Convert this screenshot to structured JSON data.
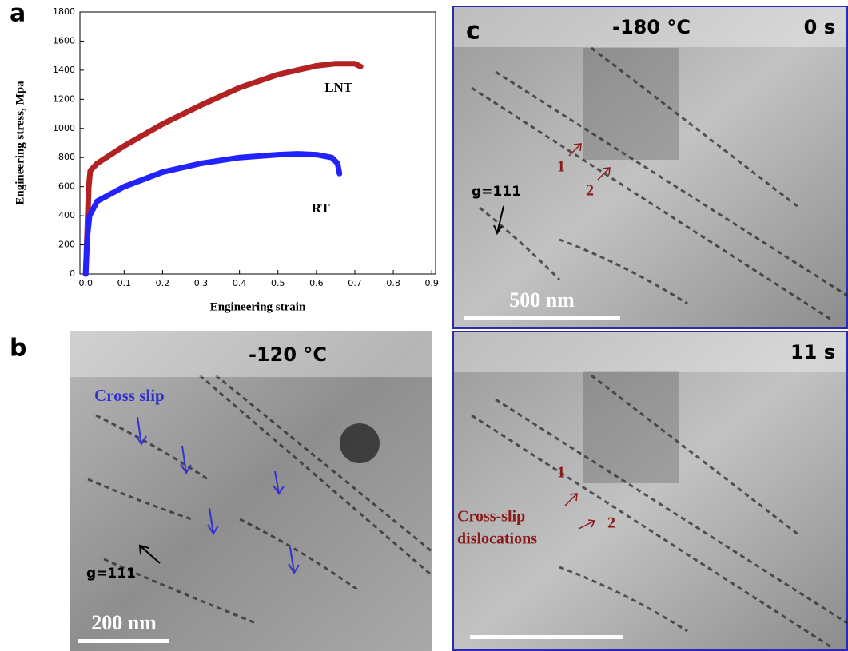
{
  "chart_data": {
    "type": "line",
    "xlabel": "Engineering strain",
    "ylabel": "Engineering stress, Mpa",
    "xlim": [
      -0.015,
      0.91
    ],
    "ylim": [
      0,
      1800
    ],
    "xticks": [
      {
        "value": 0,
        "label": "0.0"
      },
      0.1,
      0.2,
      0.3,
      0.4,
      0.5,
      0.6,
      0.7,
      0.8,
      0.9
    ],
    "yticks": [
      0,
      200,
      400,
      600,
      800,
      1000,
      1200,
      1400,
      1600,
      1800
    ],
    "series": [
      {
        "name": "LNT",
        "color": "#b22222",
        "x": [
          0.0,
          0.004,
          0.008,
          0.012,
          0.03,
          0.1,
          0.2,
          0.3,
          0.4,
          0.5,
          0.6,
          0.65,
          0.7,
          0.715
        ],
        "values": [
          0,
          300,
          600,
          710,
          760,
          880,
          1030,
          1160,
          1280,
          1370,
          1430,
          1445,
          1445,
          1425
        ]
      },
      {
        "name": "RT",
        "color": "#2222ff",
        "x": [
          0.0,
          0.004,
          0.01,
          0.03,
          0.1,
          0.2,
          0.3,
          0.4,
          0.5,
          0.55,
          0.6,
          0.64,
          0.655,
          0.66
        ],
        "values": [
          0,
          250,
          400,
          500,
          600,
          700,
          760,
          800,
          820,
          825,
          820,
          800,
          760,
          690
        ]
      }
    ]
  },
  "panels": {
    "a": "a",
    "b": "b",
    "c": "c"
  },
  "panel_b": {
    "temperature": "-120 °C",
    "annotation": "Cross slip",
    "g_vector": "g=111",
    "scale_bar": "200 nm"
  },
  "panel_c_top": {
    "temperature": "-180 °C",
    "time": "0 s",
    "marker_1": "1",
    "marker_2": "2",
    "g_vector": "g=111",
    "scale_bar": "500 nm"
  },
  "panel_c_bottom": {
    "time": "11 s",
    "marker_1": "1",
    "marker_2": "2",
    "annotation_line1": "Cross-slip",
    "annotation_line2": "dislocations"
  }
}
